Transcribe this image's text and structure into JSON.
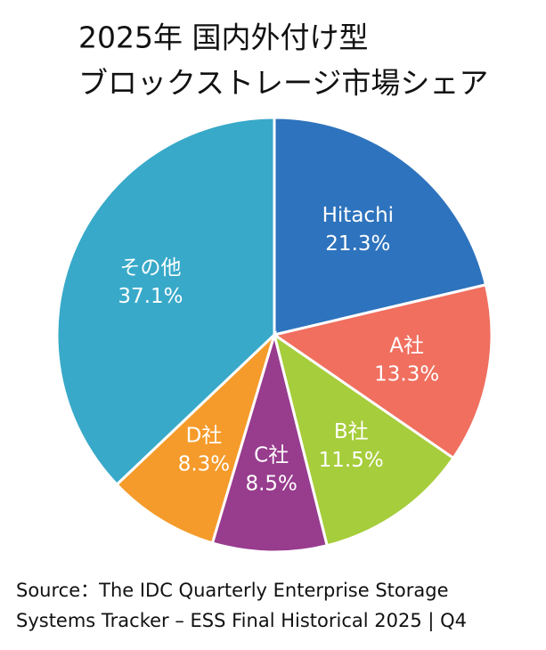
{
  "chart_data": {
    "type": "pie",
    "title_lines": [
      "2025年 国内外付け型",
      "ブロックストレージ市場シェア"
    ],
    "categories": [
      "Hitachi",
      "A社",
      "B社",
      "C社",
      "D社",
      "その他"
    ],
    "values": [
      21.3,
      13.3,
      11.5,
      8.5,
      8.3,
      37.1
    ],
    "value_labels": [
      "21.3%",
      "13.3%",
      "11.5%",
      "8.5%",
      "8.3%",
      "37.1%"
    ],
    "colors": [
      "#2e73bd",
      "#f06f5f",
      "#a6cd3b",
      "#983c8e",
      "#f59b2b",
      "#38a9c9"
    ],
    "source_lines": [
      "Source：The IDC Quarterly Enterprise Storage",
      "Systems Tracker – ESS Final Historical 2025 | Q4"
    ]
  }
}
